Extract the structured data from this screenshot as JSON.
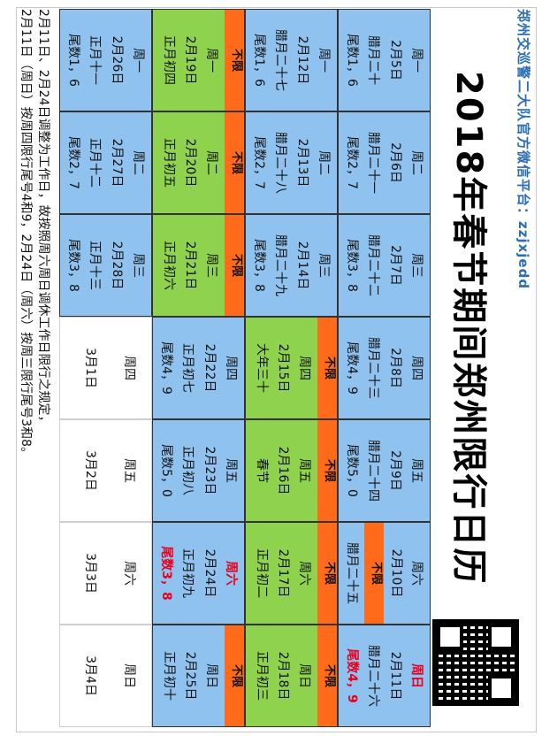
{
  "title": "2018年春节期间郑州限行日历",
  "subtitle": "郑州交巡警二大队官方微信平台：zzjxjedd",
  "notes": [
    "2月11日、2月24日调整为工作日，故按照周六周日调休工作日限行之规定，",
    "2月11日（周日）按周四限行尾号4和9，2月24日（周六）按周三限行尾号3和8。"
  ],
  "rows": [
    [
      {
        "w": "周一",
        "d": "2月5日",
        "l": "腊月二十",
        "t": "尾数1，6",
        "c": "blue"
      },
      {
        "w": "周二",
        "d": "2月6日",
        "l": "腊月二十一",
        "t": "尾数2，7",
        "c": "blue"
      },
      {
        "w": "周三",
        "d": "2月7日",
        "l": "腊月二十二",
        "t": "尾数3，8",
        "c": "blue"
      },
      {
        "w": "周四",
        "d": "2月8日",
        "l": "腊月二十三",
        "t": "尾数4，9",
        "c": "blue"
      },
      {
        "w": "周五",
        "d": "2月9日",
        "l": "腊月二十四",
        "t": "尾数5，0",
        "c": "blue"
      },
      {
        "w": "周六",
        "d": "2月10日",
        "l": "腊月二十五",
        "t": "不限",
        "c": "banner"
      },
      {
        "w": "周日",
        "d": "2月11日",
        "l": "腊月二十六",
        "t": "尾数4，9",
        "c": "blue",
        "red": true
      }
    ],
    [
      {
        "w": "周一",
        "d": "2月12日",
        "l": "腊月二十七",
        "t": "尾数1，6",
        "c": "blue"
      },
      {
        "w": "周二",
        "d": "2月13日",
        "l": "腊月二十八",
        "t": "尾数2，7",
        "c": "blue"
      },
      {
        "w": "周三",
        "d": "2月14日",
        "l": "腊月二十九",
        "t": "尾数3，8",
        "c": "blue"
      },
      {
        "w": "周四",
        "d": "2月15日",
        "l": "大年三十",
        "t": "不限",
        "c": "greenbar"
      },
      {
        "w": "周五",
        "d": "2月16日",
        "l": "春节",
        "t": "不限",
        "c": "greenbar"
      },
      {
        "w": "周六",
        "d": "2月17日",
        "l": "正月初二",
        "t": "不限",
        "c": "greenbar"
      },
      {
        "w": "周日",
        "d": "2月18日",
        "l": "正月初三",
        "t": "不限",
        "c": "greenbar"
      }
    ],
    [
      {
        "w": "周一",
        "d": "2月19日",
        "l": "正月初四",
        "t": "不限",
        "c": "greenbar"
      },
      {
        "w": "周二",
        "d": "2月20日",
        "l": "正月初五",
        "t": "不限",
        "c": "greenbar"
      },
      {
        "w": "周三",
        "d": "2月21日",
        "l": "正月初六",
        "t": "不限",
        "c": "greenbar"
      },
      {
        "w": "周四",
        "d": "2月22日",
        "l": "正月初七",
        "t": "尾数4，9",
        "c": "blue"
      },
      {
        "w": "周五",
        "d": "2月23日",
        "l": "正月初八",
        "t": "尾数5，0",
        "c": "blue"
      },
      {
        "w": "周六",
        "d": "2月24日",
        "l": "正月初九",
        "t": "尾数3，8",
        "c": "blue",
        "red": true
      },
      {
        "w": "周日",
        "d": "2月25日",
        "l": "正月初十",
        "t": "不限",
        "c": "bluebar"
      }
    ],
    [
      {
        "w": "周一",
        "d": "2月26日",
        "l": "正月十一",
        "t": "尾数1，6",
        "c": "blue"
      },
      {
        "w": "周二",
        "d": "2月27日",
        "l": "正月十二",
        "t": "尾数2，7",
        "c": "blue"
      },
      {
        "w": "周三",
        "d": "2月28日",
        "l": "正月十三",
        "t": "尾数3，8",
        "c": "blue"
      },
      {
        "w": "周四",
        "d": "3月1日",
        "c": "white"
      },
      {
        "w": "周五",
        "d": "3月2日",
        "c": "white"
      },
      {
        "w": "周六",
        "d": "3月3日",
        "c": "white"
      },
      {
        "w": "周日",
        "d": "3月4日",
        "c": "white"
      }
    ]
  ]
}
